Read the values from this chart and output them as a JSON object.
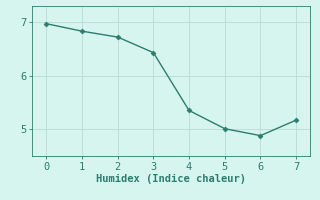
{
  "x": [
    0,
    1,
    2,
    3,
    4,
    5,
    6,
    7
  ],
  "y": [
    6.97,
    6.83,
    6.72,
    6.43,
    5.35,
    5.01,
    4.88,
    5.17
  ],
  "line_color": "#2d7d6e",
  "marker": "D",
  "marker_size": 2.5,
  "background_color": "#d6f5ee",
  "grid_color": "#b8ddd6",
  "xlabel": "Humidex (Indice chaleur)",
  "xlabel_fontsize": 7.5,
  "tick_fontsize": 7.5,
  "xlim": [
    -0.4,
    7.4
  ],
  "ylim": [
    4.5,
    7.3
  ],
  "yticks": [
    5,
    6,
    7
  ],
  "xticks": [
    0,
    1,
    2,
    3,
    4,
    5,
    6,
    7
  ]
}
